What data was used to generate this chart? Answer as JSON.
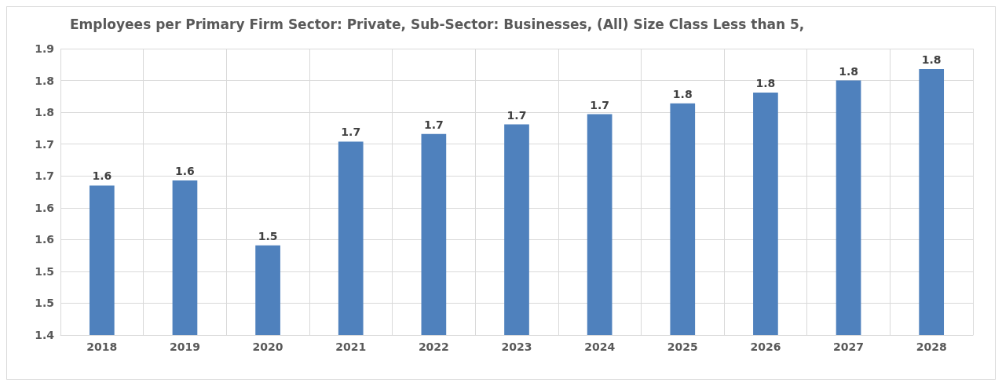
{
  "chart_data": {
    "type": "bar",
    "title": "Employees per Primary Firm Sector: Private, Sub-Sector: Businesses, (All) Size Class Less than 5,",
    "categories": [
      "2018",
      "2019",
      "2020",
      "2021",
      "2022",
      "2023",
      "2024",
      "2025",
      "2026",
      "2027",
      "2028"
    ],
    "values": [
      1.635,
      1.643,
      1.541,
      1.704,
      1.716,
      1.731,
      1.747,
      1.764,
      1.781,
      1.8,
      1.818
    ],
    "value_labels": [
      "1.6",
      "1.6",
      "1.5",
      "1.7",
      "1.7",
      "1.7",
      "1.7",
      "1.8",
      "1.8",
      "1.8",
      "1.8"
    ],
    "color": "#4f81bd",
    "ylim": [
      1.4,
      1.85
    ],
    "yticks": [
      1.4,
      {
        "value": 1.45,
        "label": "1.5"
      },
      1.5,
      {
        "value": 1.55,
        "label": "1.6"
      },
      1.6,
      {
        "value": 1.65,
        "label": "1.7"
      },
      1.7,
      {
        "value": 1.75,
        "label": "1.8"
      },
      1.8,
      {
        "value": 1.85,
        "label": "1.9"
      }
    ],
    "grid": true
  }
}
